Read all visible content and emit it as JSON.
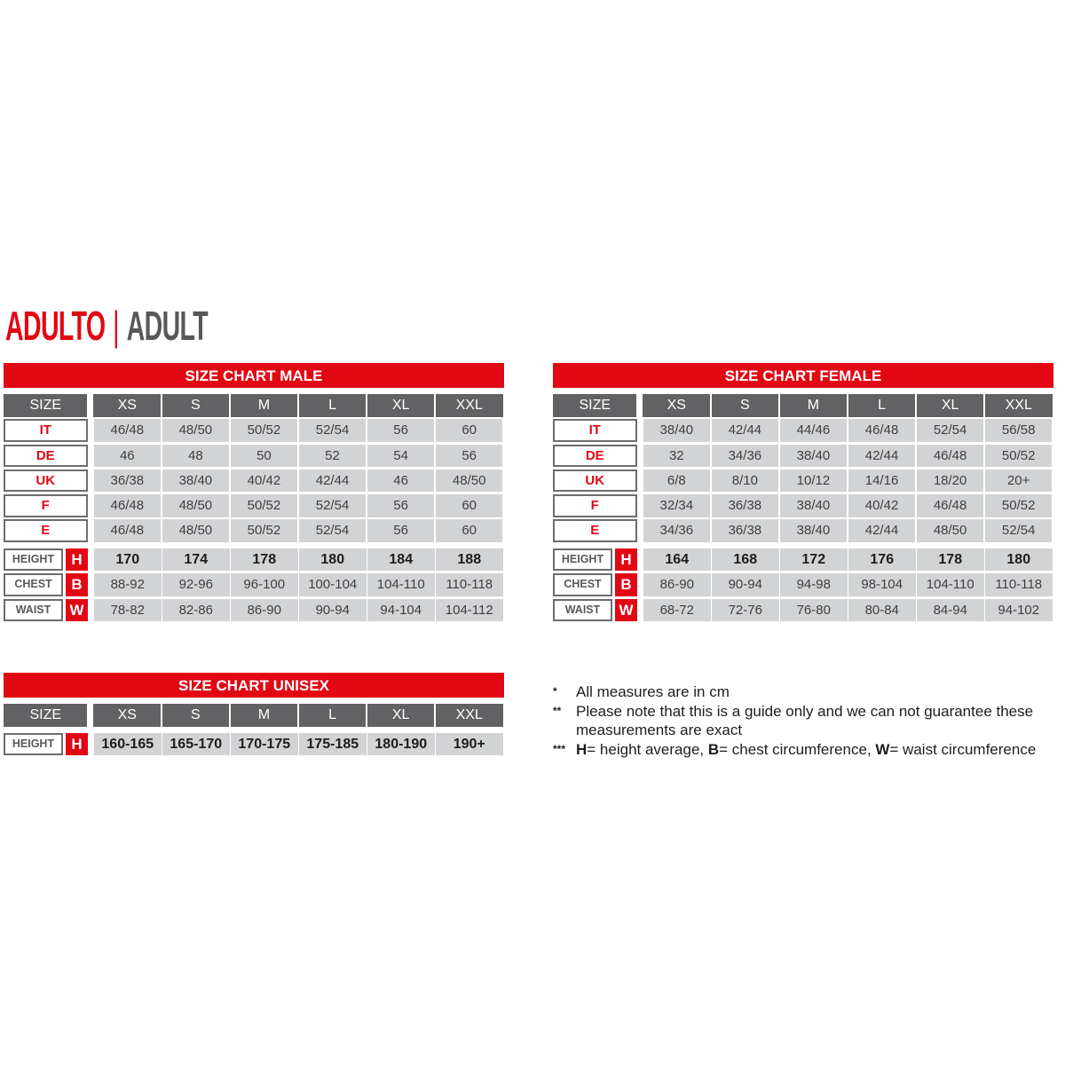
{
  "heading": {
    "red": "ADULTO",
    "separator": "|",
    "grey": "ADULT"
  },
  "charts": [
    {
      "id": "male",
      "title": "SIZE CHART MALE",
      "header_label": "SIZE",
      "sizes": [
        "XS",
        "S",
        "M",
        "L",
        "XL",
        "XXL"
      ],
      "conversions": [
        {
          "label": "IT",
          "values": [
            "46/48",
            "48/50",
            "50/52",
            "52/54",
            "56",
            "60"
          ]
        },
        {
          "label": "DE",
          "values": [
            "46",
            "48",
            "50",
            "52",
            "54",
            "56"
          ]
        },
        {
          "label": "UK",
          "values": [
            "36/38",
            "38/40",
            "40/42",
            "42/44",
            "46",
            "48/50"
          ]
        },
        {
          "label": "F",
          "values": [
            "46/48",
            "48/50",
            "50/52",
            "52/54",
            "56",
            "60"
          ]
        },
        {
          "label": "E",
          "values": [
            "46/48",
            "48/50",
            "50/52",
            "52/54",
            "56",
            "60"
          ]
        }
      ],
      "measures": [
        {
          "label": "HEIGHT",
          "letter": "H",
          "values": [
            "170",
            "174",
            "178",
            "180",
            "184",
            "188"
          ]
        },
        {
          "label": "CHEST",
          "letter": "B",
          "values": [
            "88-92",
            "92-96",
            "96-100",
            "100-104",
            "104-110",
            "110-118"
          ]
        },
        {
          "label": "WAIST",
          "letter": "W",
          "values": [
            "78-82",
            "82-86",
            "86-90",
            "90-94",
            "94-104",
            "104-112"
          ]
        }
      ]
    },
    {
      "id": "female",
      "title": "SIZE CHART FEMALE",
      "header_label": "SIZE",
      "sizes": [
        "XS",
        "S",
        "M",
        "L",
        "XL",
        "XXL"
      ],
      "conversions": [
        {
          "label": "IT",
          "values": [
            "38/40",
            "42/44",
            "44/46",
            "46/48",
            "52/54",
            "56/58"
          ]
        },
        {
          "label": "DE",
          "values": [
            "32",
            "34/36",
            "38/40",
            "42/44",
            "46/48",
            "50/52"
          ]
        },
        {
          "label": "UK",
          "values": [
            "6/8",
            "8/10",
            "10/12",
            "14/16",
            "18/20",
            "20+"
          ]
        },
        {
          "label": "F",
          "values": [
            "32/34",
            "36/38",
            "38/40",
            "40/42",
            "46/48",
            "50/52"
          ]
        },
        {
          "label": "E",
          "values": [
            "34/36",
            "36/38",
            "38/40",
            "42/44",
            "48/50",
            "52/54"
          ]
        }
      ],
      "measures": [
        {
          "label": "HEIGHT",
          "letter": "H",
          "values": [
            "164",
            "168",
            "172",
            "176",
            "178",
            "180"
          ]
        },
        {
          "label": "CHEST",
          "letter": "B",
          "values": [
            "86-90",
            "90-94",
            "94-98",
            "98-104",
            "104-110",
            "110-118"
          ]
        },
        {
          "label": "WAIST",
          "letter": "W",
          "values": [
            "68-72",
            "72-76",
            "76-80",
            "80-84",
            "84-94",
            "94-102"
          ]
        }
      ]
    },
    {
      "id": "unisex",
      "title": "SIZE CHART UNISEX",
      "header_label": "SIZE",
      "sizes": [
        "XS",
        "S",
        "M",
        "L",
        "XL",
        "XXL"
      ],
      "conversions": [],
      "measures": [
        {
          "label": "HEIGHT",
          "letter": "H",
          "values": [
            "160-165",
            "165-170",
            "170-175",
            "175-185",
            "180-190",
            "190+"
          ]
        }
      ]
    }
  ],
  "notes": [
    {
      "mark": "*",
      "text": "All measures are in cm"
    },
    {
      "mark": "**",
      "text": "Please note that this is a guide only and we can not guarantee these measurements are exact"
    },
    {
      "mark": "***",
      "parts": [
        {
          "b": "H",
          "t": "= height average, "
        },
        {
          "b": "B",
          "t": "= chest circumference, "
        },
        {
          "b": "W",
          "t": "= waist circumference"
        }
      ]
    }
  ],
  "colors": {
    "accent": "#e30613",
    "header": "#626264",
    "cell": "#d2d3d5"
  }
}
